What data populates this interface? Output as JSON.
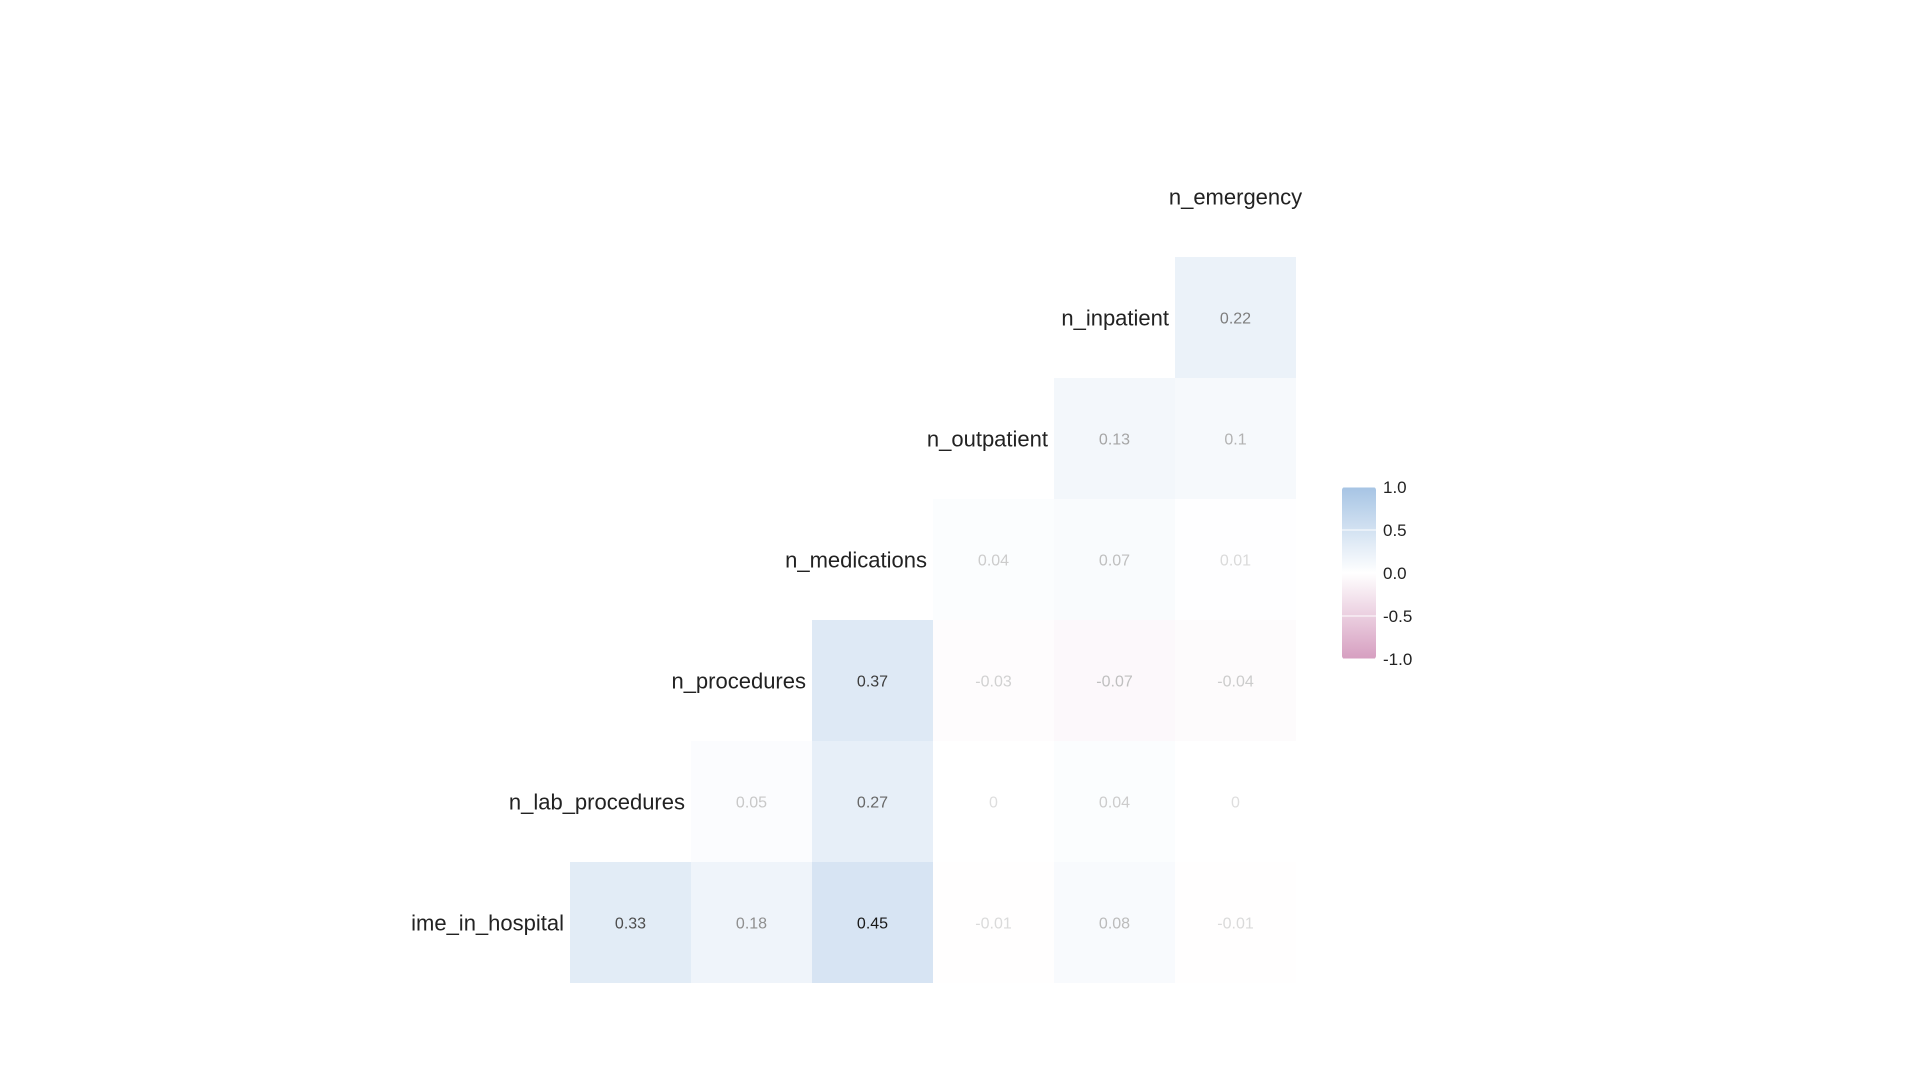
{
  "chart_data": {
    "type": "heatmap",
    "title": "",
    "row_labels": [
      "n_emergency",
      "n_inpatient",
      "n_outpatient",
      "n_medications",
      "n_procedures",
      "n_lab_procedures",
      "ime_in_hospital"
    ],
    "cells": [
      {
        "row": 1,
        "col": 6,
        "value": 0.22,
        "label": "0.22"
      },
      {
        "row": 2,
        "col": 5,
        "value": 0.13,
        "label": "0.13"
      },
      {
        "row": 2,
        "col": 6,
        "value": 0.1,
        "label": "0.1"
      },
      {
        "row": 3,
        "col": 4,
        "value": 0.04,
        "label": "0.04"
      },
      {
        "row": 3,
        "col": 5,
        "value": 0.07,
        "label": "0.07"
      },
      {
        "row": 3,
        "col": 6,
        "value": 0.01,
        "label": "0.01"
      },
      {
        "row": 4,
        "col": 3,
        "value": 0.37,
        "label": "0.37"
      },
      {
        "row": 4,
        "col": 4,
        "value": -0.03,
        "label": "-0.03"
      },
      {
        "row": 4,
        "col": 5,
        "value": -0.07,
        "label": "-0.07"
      },
      {
        "row": 4,
        "col": 6,
        "value": -0.04,
        "label": "-0.04"
      },
      {
        "row": 5,
        "col": 2,
        "value": 0.05,
        "label": "0.05"
      },
      {
        "row": 5,
        "col": 3,
        "value": 0.27,
        "label": "0.27"
      },
      {
        "row": 5,
        "col": 4,
        "value": 0,
        "label": "0"
      },
      {
        "row": 5,
        "col": 5,
        "value": 0.04,
        "label": "0.04"
      },
      {
        "row": 5,
        "col": 6,
        "value": 0,
        "label": "0"
      },
      {
        "row": 6,
        "col": 1,
        "value": 0.33,
        "label": "0.33"
      },
      {
        "row": 6,
        "col": 2,
        "value": 0.18,
        "label": "0.18"
      },
      {
        "row": 6,
        "col": 3,
        "value": 0.45,
        "label": "0.45"
      },
      {
        "row": 6,
        "col": 4,
        "value": -0.01,
        "label": "-0.01"
      },
      {
        "row": 6,
        "col": 5,
        "value": 0.08,
        "label": "0.08"
      },
      {
        "row": 6,
        "col": 6,
        "value": -0.01,
        "label": "-0.01"
      }
    ],
    "color_scale": {
      "range": [
        -1,
        1
      ],
      "low_color": "#d69ec0",
      "mid_color": "#ffffff",
      "high_color": "#a6c4e4",
      "ticks": [
        "1.0",
        "0.5",
        "0.0",
        "-0.5",
        "-1.0"
      ]
    }
  }
}
